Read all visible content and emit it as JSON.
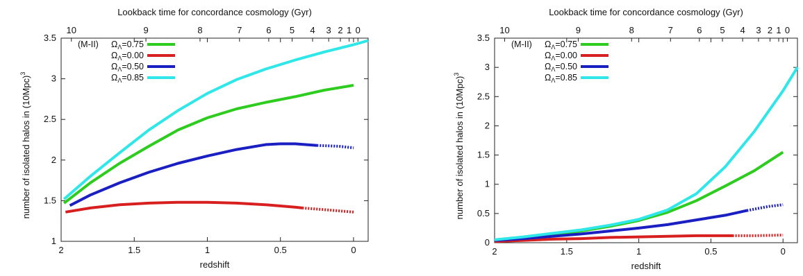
{
  "chart_data": [
    {
      "type": "line",
      "panel": "left",
      "xlabel": "redshift",
      "ylabel": "number of isolated halos in (10Mpc)^3",
      "top_axis_label": "Lookback time for concordance cosmology (Gyr)",
      "x_reversed": true,
      "xlim": [
        2.0,
        -0.1
      ],
      "ylim": [
        1,
        3.5
      ],
      "x_ticks": [
        "2",
        "1.5",
        "1",
        "0.5",
        "0"
      ],
      "y_ticks": [
        "1",
        "1.5",
        "2",
        "2.5",
        "3",
        "3.5"
      ],
      "top_ticks": [
        {
          "label": "10",
          "z": 1.93
        },
        {
          "label": "9",
          "z": 1.42
        },
        {
          "label": "8",
          "z": 1.05
        },
        {
          "label": "7",
          "z": 0.78
        },
        {
          "label": "6",
          "z": 0.58
        },
        {
          "label": "5",
          "z": 0.42
        },
        {
          "label": "4",
          "z": 0.28
        },
        {
          "label": "3",
          "z": 0.17
        },
        {
          "label": "2",
          "z": 0.09
        },
        {
          "label": "1",
          "z": 0.03
        },
        {
          "label": "0",
          "z": -0.03
        }
      ],
      "legend_title": "(M-II)",
      "series": [
        {
          "name": "Ω_Λ=0.75",
          "color": "#2ecc1f",
          "x": [
            1.98,
            1.8,
            1.6,
            1.4,
            1.2,
            1.0,
            0.8,
            0.6,
            0.4,
            0.2,
            0.0
          ],
          "y": [
            1.47,
            1.72,
            1.96,
            2.17,
            2.37,
            2.52,
            2.63,
            2.71,
            2.78,
            2.86,
            2.92
          ]
        },
        {
          "name": "Ω_Λ=0.00",
          "color": "#d81f1f",
          "dashed_from": 0.35,
          "x": [
            1.97,
            1.8,
            1.6,
            1.4,
            1.2,
            1.0,
            0.8,
            0.6,
            0.4,
            0.35,
            0.2,
            0.0
          ],
          "y": [
            1.36,
            1.41,
            1.45,
            1.47,
            1.48,
            1.48,
            1.47,
            1.45,
            1.42,
            1.41,
            1.39,
            1.36
          ]
        },
        {
          "name": "Ω_Λ=0.50",
          "color": "#1a1fc2",
          "dashed_from": 0.25,
          "x": [
            1.94,
            1.8,
            1.6,
            1.4,
            1.2,
            1.0,
            0.8,
            0.6,
            0.5,
            0.4,
            0.25,
            0.1,
            0.0
          ],
          "y": [
            1.44,
            1.57,
            1.72,
            1.85,
            1.96,
            2.05,
            2.13,
            2.19,
            2.2,
            2.2,
            2.18,
            2.17,
            2.15
          ]
        },
        {
          "name": "Ω_Λ=0.85",
          "color": "#2fe6e8",
          "x": [
            1.98,
            1.8,
            1.6,
            1.4,
            1.2,
            1.0,
            0.8,
            0.6,
            0.4,
            0.2,
            0.0,
            -0.1
          ],
          "y": [
            1.52,
            1.8,
            2.09,
            2.37,
            2.61,
            2.82,
            2.99,
            3.12,
            3.23,
            3.33,
            3.42,
            3.47
          ]
        }
      ]
    },
    {
      "type": "line",
      "panel": "right",
      "xlabel": "redshift",
      "ylabel": "number of isolated halos in (10Mpc)^3",
      "top_axis_label": "Lookback time for concordance cosmology (Gyr)",
      "x_reversed": true,
      "xlim": [
        2.0,
        -0.1
      ],
      "ylim": [
        0,
        3.5
      ],
      "x_ticks": [
        "2",
        "1.5",
        "1",
        "0.5",
        "0"
      ],
      "y_ticks": [
        "0",
        "0.5",
        "1",
        "1.5",
        "2",
        "2.5",
        "3",
        "3.5"
      ],
      "top_ticks": [
        {
          "label": "10",
          "z": 1.93
        },
        {
          "label": "9",
          "z": 1.42
        },
        {
          "label": "8",
          "z": 1.05
        },
        {
          "label": "7",
          "z": 0.78
        },
        {
          "label": "6",
          "z": 0.58
        },
        {
          "label": "5",
          "z": 0.42
        },
        {
          "label": "4",
          "z": 0.28
        },
        {
          "label": "3",
          "z": 0.17
        },
        {
          "label": "2",
          "z": 0.09
        },
        {
          "label": "1",
          "z": 0.03
        },
        {
          "label": "0",
          "z": -0.03
        }
      ],
      "legend_title": "(M-II)",
      "series": [
        {
          "name": "Ω_Λ=0.75",
          "color": "#2ecc1f",
          "x": [
            2.0,
            1.8,
            1.6,
            1.4,
            1.2,
            1.0,
            0.8,
            0.6,
            0.4,
            0.2,
            0.0
          ],
          "y": [
            0.04,
            0.09,
            0.14,
            0.2,
            0.28,
            0.38,
            0.52,
            0.72,
            0.97,
            1.23,
            1.55
          ]
        },
        {
          "name": "Ω_Λ=0.00",
          "color": "#d81f1f",
          "dashed_from": 0.35,
          "x": [
            2.0,
            1.8,
            1.6,
            1.4,
            1.2,
            1.0,
            0.8,
            0.6,
            0.35,
            0.2,
            0.0
          ],
          "y": [
            0.02,
            0.04,
            0.06,
            0.07,
            0.09,
            0.1,
            0.11,
            0.12,
            0.12,
            0.12,
            0.13
          ]
        },
        {
          "name": "Ω_Λ=0.50",
          "color": "#1a1fc2",
          "dashed_from": 0.25,
          "x": [
            2.0,
            1.8,
            1.6,
            1.4,
            1.2,
            1.0,
            0.8,
            0.6,
            0.4,
            0.25,
            0.1,
            0.0
          ],
          "y": [
            0.04,
            0.07,
            0.11,
            0.15,
            0.2,
            0.25,
            0.31,
            0.39,
            0.47,
            0.55,
            0.62,
            0.65
          ]
        },
        {
          "name": "Ω_Λ=0.85",
          "color": "#2fe6e8",
          "x": [
            2.0,
            1.8,
            1.6,
            1.4,
            1.2,
            1.0,
            0.8,
            0.6,
            0.4,
            0.2,
            0.0,
            -0.1
          ],
          "y": [
            0.05,
            0.1,
            0.16,
            0.22,
            0.3,
            0.4,
            0.56,
            0.84,
            1.3,
            1.9,
            2.6,
            3.0
          ]
        }
      ]
    }
  ]
}
